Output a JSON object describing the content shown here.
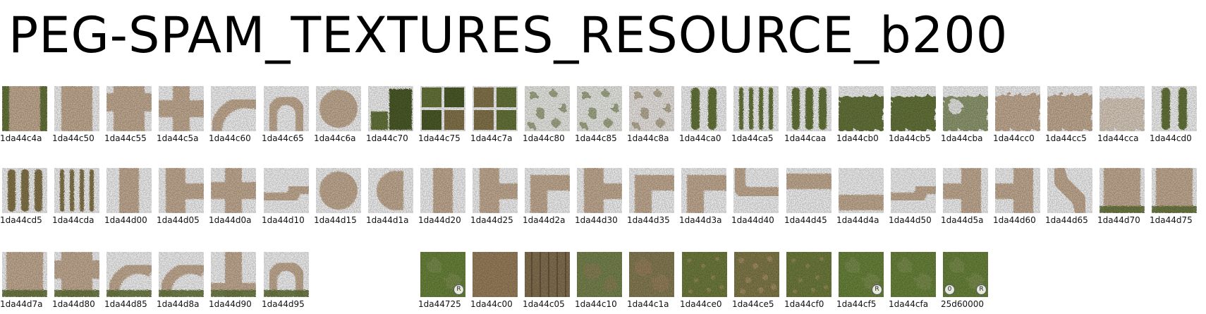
{
  "title": "PEG-SPAM_TEXTURES_RESOURCE_b200",
  "textures": [
    {
      "id": "1da44c4a",
      "kind": "path-v-grass"
    },
    {
      "id": "1da44c50",
      "kind": "path-v"
    },
    {
      "id": "1da44c55",
      "kind": "path-t-down"
    },
    {
      "id": "1da44c5a",
      "kind": "path-cross"
    },
    {
      "id": "1da44c60",
      "kind": "path-arc"
    },
    {
      "id": "1da44c65",
      "kind": "path-ring"
    },
    {
      "id": "1da44c6a",
      "kind": "path-disc"
    },
    {
      "id": "1da44c70",
      "kind": "grass-steps"
    },
    {
      "id": "1da44c75",
      "kind": "grass-quad"
    },
    {
      "id": "1da44c7a",
      "kind": "grass-quad-dry"
    },
    {
      "id": "1da44c80",
      "kind": "shrub-white"
    },
    {
      "id": "1da44c85",
      "kind": "shrub-white"
    },
    {
      "id": "1da44c8a",
      "kind": "shrub-white-dry"
    },
    {
      "id": "1da44ca0",
      "kind": "stripes-2"
    },
    {
      "id": "1da44ca5",
      "kind": "stripes-4"
    },
    {
      "id": "1da44caa",
      "kind": "stripes-3"
    },
    {
      "id": "1da44cb0",
      "kind": "grass-fade"
    },
    {
      "id": "1da44cb5",
      "kind": "grass-fade"
    },
    {
      "id": "1da44cba",
      "kind": "grass-fade-light"
    },
    {
      "id": "1da44cc0",
      "kind": "sand-fade"
    },
    {
      "id": "1da44cc5",
      "kind": "sand-fade"
    },
    {
      "id": "1da44cca",
      "kind": "sand-fade-light"
    },
    {
      "id": "1da44cd0",
      "kind": "stripes-2"
    },
    {
      "id": "1da44cd5",
      "kind": "stripes-3-dry"
    },
    {
      "id": "1da44cda",
      "kind": "stripes-4-dry"
    },
    {
      "id": "1da44d00",
      "kind": "path-v-narrow"
    },
    {
      "id": "1da44d05",
      "kind": "path-t-right"
    },
    {
      "id": "1da44d0a",
      "kind": "path-cross"
    },
    {
      "id": "1da44d10",
      "kind": "path-bend-br"
    },
    {
      "id": "1da44d15",
      "kind": "path-disc"
    },
    {
      "id": "1da44d1a",
      "kind": "path-halfdisc"
    },
    {
      "id": "1da44d20",
      "kind": "path-v-narrow"
    },
    {
      "id": "1da44d25",
      "kind": "path-t-right"
    },
    {
      "id": "1da44d2a",
      "kind": "path-corner"
    },
    {
      "id": "1da44d30",
      "kind": "path-t-right"
    },
    {
      "id": "1da44d35",
      "kind": "path-corner"
    },
    {
      "id": "1da44d3a",
      "kind": "path-corner"
    },
    {
      "id": "1da44d40",
      "kind": "path-bend-tr"
    },
    {
      "id": "1da44d45",
      "kind": "path-h-top"
    },
    {
      "id": "1da44d4a",
      "kind": "path-h-bottom"
    },
    {
      "id": "1da44d50",
      "kind": "path-bend-br"
    },
    {
      "id": "1da44d5a",
      "kind": "path-t-left"
    },
    {
      "id": "1da44d60",
      "kind": "path-t-left"
    },
    {
      "id": "1da44d65",
      "kind": "path-diag"
    },
    {
      "id": "1da44d70",
      "kind": "path-grass-bottom"
    },
    {
      "id": "1da44d75",
      "kind": "path-grass-bottom"
    },
    {
      "id": "1da44d7a",
      "kind": "path-grass-bottom"
    },
    {
      "id": "1da44d80",
      "kind": "path-t-down-grass"
    },
    {
      "id": "1da44d85",
      "kind": "path-arc-grass"
    },
    {
      "id": "1da44d8a",
      "kind": "path-arc-grass"
    },
    {
      "id": "1da44d90",
      "kind": "path-v-grass-bottom"
    },
    {
      "id": "1da44d95",
      "kind": "path-ring-grass"
    },
    {
      "id": "1da44725",
      "kind": "terrain-green",
      "badges": [
        "R"
      ]
    },
    {
      "id": "1da44c00",
      "kind": "terrain-dirt"
    },
    {
      "id": "1da44c05",
      "kind": "terrain-rows"
    },
    {
      "id": "1da44c10",
      "kind": "terrain-mixed"
    },
    {
      "id": "1da44c1a",
      "kind": "terrain-mixed-dirt"
    },
    {
      "id": "1da44ce0",
      "kind": "terrain-speckle"
    },
    {
      "id": "1da44ce5",
      "kind": "terrain-speckle-dry"
    },
    {
      "id": "1da44cf0",
      "kind": "terrain-speckle"
    },
    {
      "id": "1da44cf5",
      "kind": "terrain-green",
      "badges": [
        "R"
      ]
    },
    {
      "id": "1da44cfa",
      "kind": "terrain-green"
    },
    {
      "id": "25d60000",
      "kind": "terrain-green",
      "badges": [
        "0",
        "R"
      ]
    }
  ],
  "colors": {
    "sand": "#cdb49a",
    "sand_light": "#e4d6c6",
    "grass": "#6b7a3c",
    "grass_dark": "#4f5e2a",
    "grass_dry": "#8a7a4e",
    "terrain_green": "#6f8a3e",
    "terrain_dirt": "#a08560"
  }
}
